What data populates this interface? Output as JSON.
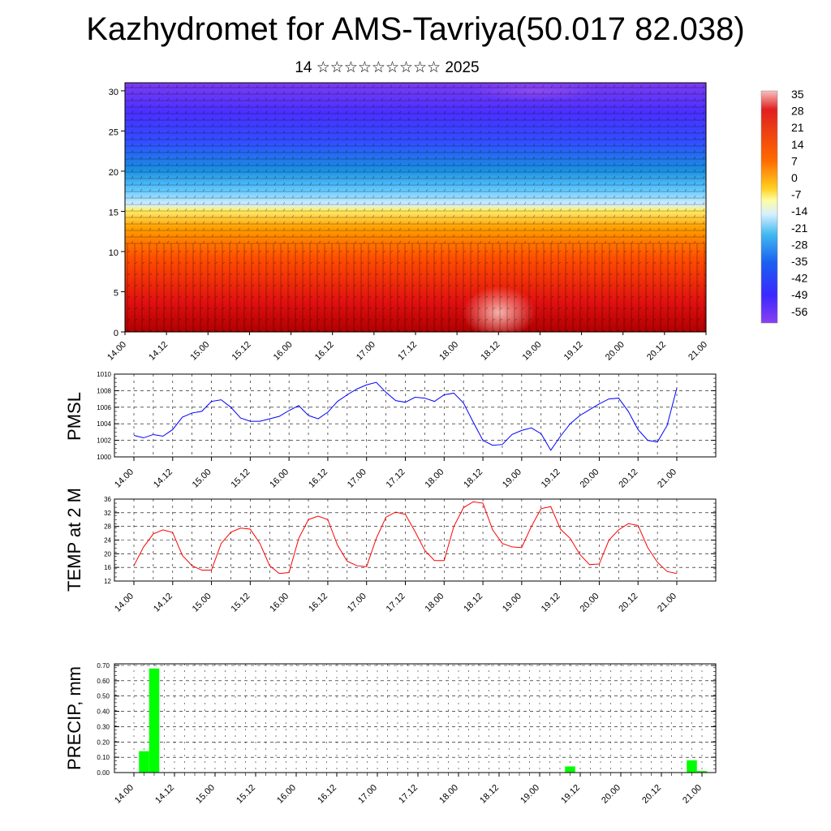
{
  "title": "Kazhydromet for AMS-Tavriya(50.017 82.038)",
  "subtitle": "14 ☆☆☆☆☆☆☆☆☆ 2025",
  "time_labels": [
    "14.00",
    "14.12",
    "15.00",
    "15.12",
    "16.00",
    "16.12",
    "17.00",
    "17.12",
    "18.00",
    "18.12",
    "19.00",
    "19.12",
    "20.00",
    "20.12",
    "21.00"
  ],
  "colors": {
    "pmsl_line": "#0000ff",
    "temp_line": "#ff0000",
    "precip_bar": "#00ff00"
  },
  "chart_data": [
    {
      "type": "heatmap",
      "name": "vertical-cross-section",
      "ylim": [
        0,
        30
      ],
      "y_ticks": [
        "0",
        "5",
        "10",
        "15",
        "20",
        "25",
        "30"
      ],
      "colorbar_labels": [
        "35",
        "28",
        "21",
        "14",
        "7",
        "0",
        "-7",
        "-14",
        "-21",
        "-28",
        "-35",
        "-42",
        "-49",
        "-56"
      ],
      "colorbar_range": [
        -56,
        35
      ],
      "temperature_by_level": [
        {
          "level": 0,
          "value": 28
        },
        {
          "level": 5,
          "value": 21
        },
        {
          "level": 10,
          "value": 14
        },
        {
          "level": 15,
          "value": -14
        },
        {
          "level": 20,
          "value": -28
        },
        {
          "level": 25,
          "value": -49
        },
        {
          "level": 30,
          "value": -56
        }
      ]
    },
    {
      "type": "line",
      "name": "PMSL",
      "ylabel": "PMSL",
      "ylim": [
        1000,
        1010
      ],
      "y_ticks": [
        "1000",
        "1002",
        "1004",
        "1006",
        "1008",
        "1010"
      ],
      "x": [
        0,
        3,
        6,
        9,
        12,
        15,
        18,
        21,
        24,
        27,
        30,
        33,
        36,
        39,
        42,
        45,
        48,
        51,
        54,
        57,
        60,
        63,
        66,
        69,
        72,
        75,
        78,
        81,
        84,
        87,
        90,
        93,
        96,
        99,
        102,
        105,
        108,
        111,
        114,
        117,
        120,
        123,
        126,
        129,
        132,
        135,
        138,
        141,
        144,
        147,
        150,
        153,
        156,
        159,
        162,
        165,
        168
      ],
      "series": [
        {
          "values": [
            1002.6,
            1002.3,
            1002.7,
            1002.5,
            1003.3,
            1004.8,
            1005.3,
            1005.5,
            1006.7,
            1006.9,
            1006.0,
            1004.7,
            1004.3,
            1004.3,
            1004.6,
            1004.9,
            1005.6,
            1006.2,
            1005.0,
            1004.6,
            1005.4,
            1006.7,
            1007.5,
            1008.2,
            1008.7,
            1009.0,
            1007.8,
            1006.8,
            1006.6,
            1007.2,
            1007.1,
            1006.7,
            1007.5,
            1007.7,
            1006.5,
            1004.2,
            1002.0,
            1001.4,
            1001.5,
            1002.7,
            1003.2,
            1003.5,
            1002.8,
            1000.8,
            1002.5,
            1004.0,
            1005.0,
            1005.7,
            1006.4,
            1007.0,
            1007.1,
            1005.5,
            1003.3,
            1002.0,
            1001.8,
            1003.8,
            1008.3
          ]
        }
      ]
    },
    {
      "type": "line",
      "name": "TEMP at 2 M",
      "ylabel": "TEMP at 2 M",
      "ylim": [
        12,
        36
      ],
      "y_ticks": [
        "12",
        "16",
        "20",
        "24",
        "28",
        "32",
        "36"
      ],
      "x": [
        0,
        3,
        6,
        9,
        12,
        15,
        18,
        21,
        24,
        27,
        30,
        33,
        36,
        39,
        42,
        45,
        48,
        51,
        54,
        57,
        60,
        63,
        66,
        69,
        72,
        75,
        78,
        81,
        84,
        87,
        90,
        93,
        96,
        99,
        102,
        105,
        108,
        111,
        114,
        117,
        120,
        123,
        126,
        129,
        132,
        135,
        138,
        141,
        144,
        147,
        150,
        153,
        156,
        159,
        162,
        165,
        168
      ],
      "series": [
        {
          "values": [
            16.5,
            22.0,
            25.8,
            27.0,
            26.2,
            19.5,
            16.5,
            15.2,
            15.2,
            23.0,
            26.3,
            27.5,
            27.2,
            23.0,
            16.5,
            14.2,
            14.5,
            24.5,
            30.0,
            31.0,
            30.0,
            22.5,
            17.8,
            16.5,
            16.2,
            24.5,
            30.7,
            32.2,
            31.5,
            26.5,
            21.0,
            18.0,
            18.0,
            28.0,
            33.5,
            35.2,
            34.8,
            27.0,
            23.0,
            22.0,
            21.8,
            28.0,
            33.2,
            33.8,
            27.2,
            24.5,
            19.8,
            16.8,
            17.0,
            24.0,
            27.0,
            28.8,
            28.3,
            21.8,
            17.5,
            14.8,
            14.2
          ]
        }
      ]
    },
    {
      "type": "bar",
      "name": "PRECIP",
      "ylabel": "PRECIP, mm",
      "ylim": [
        0,
        0.7
      ],
      "y_ticks": [
        "0.00",
        "0.10",
        "0.20",
        "0.30",
        "0.40",
        "0.50",
        "0.60",
        "0.70"
      ],
      "bars": [
        {
          "x": 3,
          "value": 0.14
        },
        {
          "x": 6,
          "value": 0.68
        },
        {
          "x": 129,
          "value": 0.04
        },
        {
          "x": 165,
          "value": 0.08
        },
        {
          "x": 168,
          "value": 0.01
        }
      ]
    }
  ]
}
